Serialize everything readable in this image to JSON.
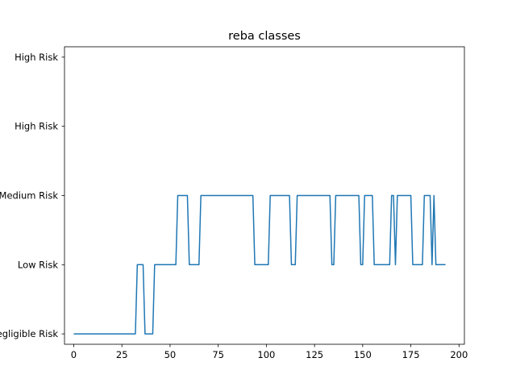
{
  "chart_data": {
    "type": "line",
    "title": "reba classes",
    "xlabel": "",
    "ylabel": "",
    "xlim": [
      -4.8,
      202.8
    ],
    "ylim": [
      -0.15,
      4.15
    ],
    "x_ticks": [
      0,
      25,
      50,
      75,
      100,
      125,
      150,
      175,
      200
    ],
    "x_tick_labels": [
      "0",
      "25",
      "50",
      "75",
      "100",
      "125",
      "150",
      "175",
      "200"
    ],
    "y_ticks": [
      0,
      1,
      2,
      3,
      4
    ],
    "y_tick_labels": [
      "Negligible Risk",
      "Low Risk",
      "Medium Risk",
      "High Risk",
      "High Risk"
    ],
    "grid": false,
    "series": [
      {
        "color": "#1f77b4",
        "points": [
          [
            0,
            0
          ],
          [
            32,
            0
          ],
          [
            33,
            1
          ],
          [
            36,
            1
          ],
          [
            37,
            0
          ],
          [
            41,
            0
          ],
          [
            42,
            1
          ],
          [
            53,
            1
          ],
          [
            54,
            2
          ],
          [
            59,
            2
          ],
          [
            60,
            1
          ],
          [
            65,
            1
          ],
          [
            66,
            2
          ],
          [
            93,
            2
          ],
          [
            94,
            1
          ],
          [
            101,
            1
          ],
          [
            102,
            2
          ],
          [
            112,
            2
          ],
          [
            113,
            1
          ],
          [
            115,
            1
          ],
          [
            116,
            2
          ],
          [
            133,
            2
          ],
          [
            134,
            1
          ],
          [
            135,
            1
          ],
          [
            136,
            2
          ],
          [
            148,
            2
          ],
          [
            149,
            1
          ],
          [
            150,
            1
          ],
          [
            151,
            2
          ],
          [
            155,
            2
          ],
          [
            156,
            1
          ],
          [
            164,
            1
          ],
          [
            165,
            2
          ],
          [
            166,
            2
          ],
          [
            167,
            1
          ],
          [
            168,
            2
          ],
          [
            175,
            2
          ],
          [
            176,
            1
          ],
          [
            181,
            1
          ],
          [
            182,
            2
          ],
          [
            185,
            2
          ],
          [
            186,
            1
          ],
          [
            187,
            2
          ],
          [
            188,
            1
          ],
          [
            193,
            1
          ]
        ]
      }
    ]
  }
}
